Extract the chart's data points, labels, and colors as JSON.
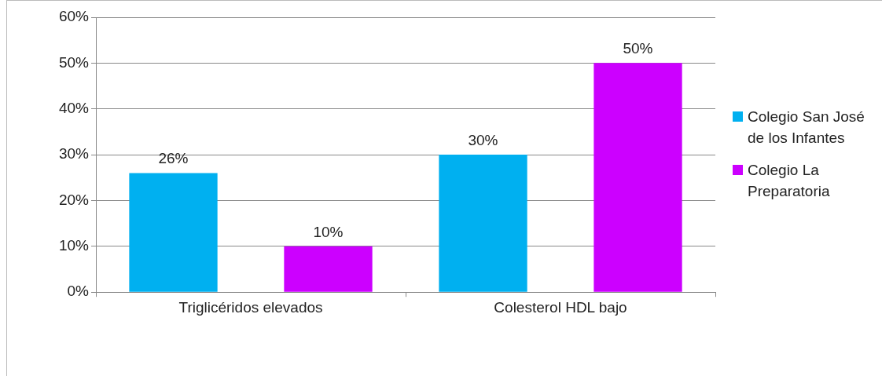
{
  "chart_data": {
    "type": "bar",
    "categories": [
      "Triglicéridos elevados",
      "Colesterol HDL bajo"
    ],
    "series": [
      {
        "name": "Colegio San José de los Infantes",
        "color": "#00b0f0",
        "values": [
          26,
          30
        ],
        "value_labels": [
          "26%",
          "30%"
        ]
      },
      {
        "name": "Colegio La Preparatoria",
        "color": "#cc00ff",
        "values": [
          10,
          50
        ],
        "value_labels": [
          "10%",
          "50%"
        ]
      }
    ],
    "ylim": [
      0,
      60
    ],
    "yticks": [
      {
        "value": 0,
        "label": "0%"
      },
      {
        "value": 10,
        "label": "10%"
      },
      {
        "value": 20,
        "label": "20%"
      },
      {
        "value": 30,
        "label": "30%"
      },
      {
        "value": 40,
        "label": "40%"
      },
      {
        "value": 50,
        "label": "50%"
      },
      {
        "value": 60,
        "label": "60%"
      }
    ],
    "grid": "y",
    "legend": "right"
  }
}
